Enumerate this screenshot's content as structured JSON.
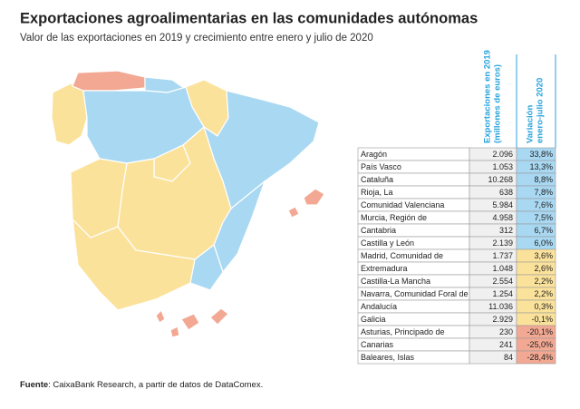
{
  "title": "Exportaciones agroalimentarias en las comunidades autónomas",
  "subtitle": "Valor de las exportaciones en 2019 y crecimiento entre enero y julio de 2020",
  "table": {
    "headers": [
      [
        "Exportaciones en 2019",
        "(millones de euros)"
      ],
      [
        "Variación",
        "enero-julio 2020"
      ]
    ],
    "rows": [
      {
        "name": "Aragón",
        "exports": "2.096",
        "change": "33,8%",
        "color": "#a9d8f2"
      },
      {
        "name": "País Vasco",
        "exports": "1.053",
        "change": "13,3%",
        "color": "#a9d8f2"
      },
      {
        "name": "Cataluña",
        "exports": "10.268",
        "change": "8,8%",
        "color": "#a9d8f2"
      },
      {
        "name": "Rioja, La",
        "exports": "638",
        "change": "7,8%",
        "color": "#a9d8f2"
      },
      {
        "name": "Comunidad Valenciana",
        "exports": "5.984",
        "change": "7,6%",
        "color": "#a9d8f2"
      },
      {
        "name": "Murcia, Región de",
        "exports": "4.958",
        "change": "7,5%",
        "color": "#a9d8f2"
      },
      {
        "name": "Cantabria",
        "exports": "312",
        "change": "6,7%",
        "color": "#a9d8f2"
      },
      {
        "name": "Castilla y León",
        "exports": "2.139",
        "change": "6,0%",
        "color": "#a9d8f2"
      },
      {
        "name": "Madrid, Comunidad de",
        "exports": "1.737",
        "change": "3,6%",
        "color": "#fbe29b"
      },
      {
        "name": "Extremadura",
        "exports": "1.048",
        "change": "2,6%",
        "color": "#fbe29b"
      },
      {
        "name": "Castilla-La Mancha",
        "exports": "2.554",
        "change": "2,2%",
        "color": "#fbe29b"
      },
      {
        "name": "Navarra, Comunidad Foral de",
        "exports": "1.254",
        "change": "2,2%",
        "color": "#fbe29b"
      },
      {
        "name": "Andalucía",
        "exports": "11.036",
        "change": "0,3%",
        "color": "#fbe29b"
      },
      {
        "name": "Galicia",
        "exports": "2.929",
        "change": "-0,1%",
        "color": "#fbe29b"
      },
      {
        "name": "Asturias, Principado de",
        "exports": "230",
        "change": "-20,1%",
        "color": "#f2a892"
      },
      {
        "name": "Canarias",
        "exports": "241",
        "change": "-25,0%",
        "color": "#f2a892"
      },
      {
        "name": "Baleares, Islas",
        "exports": "84",
        "change": "-28,4%",
        "color": "#f2a892"
      }
    ]
  },
  "source": {
    "label": "Fuente",
    "text": ": CaixaBank Research, a partir de datos de DataComex."
  }
}
